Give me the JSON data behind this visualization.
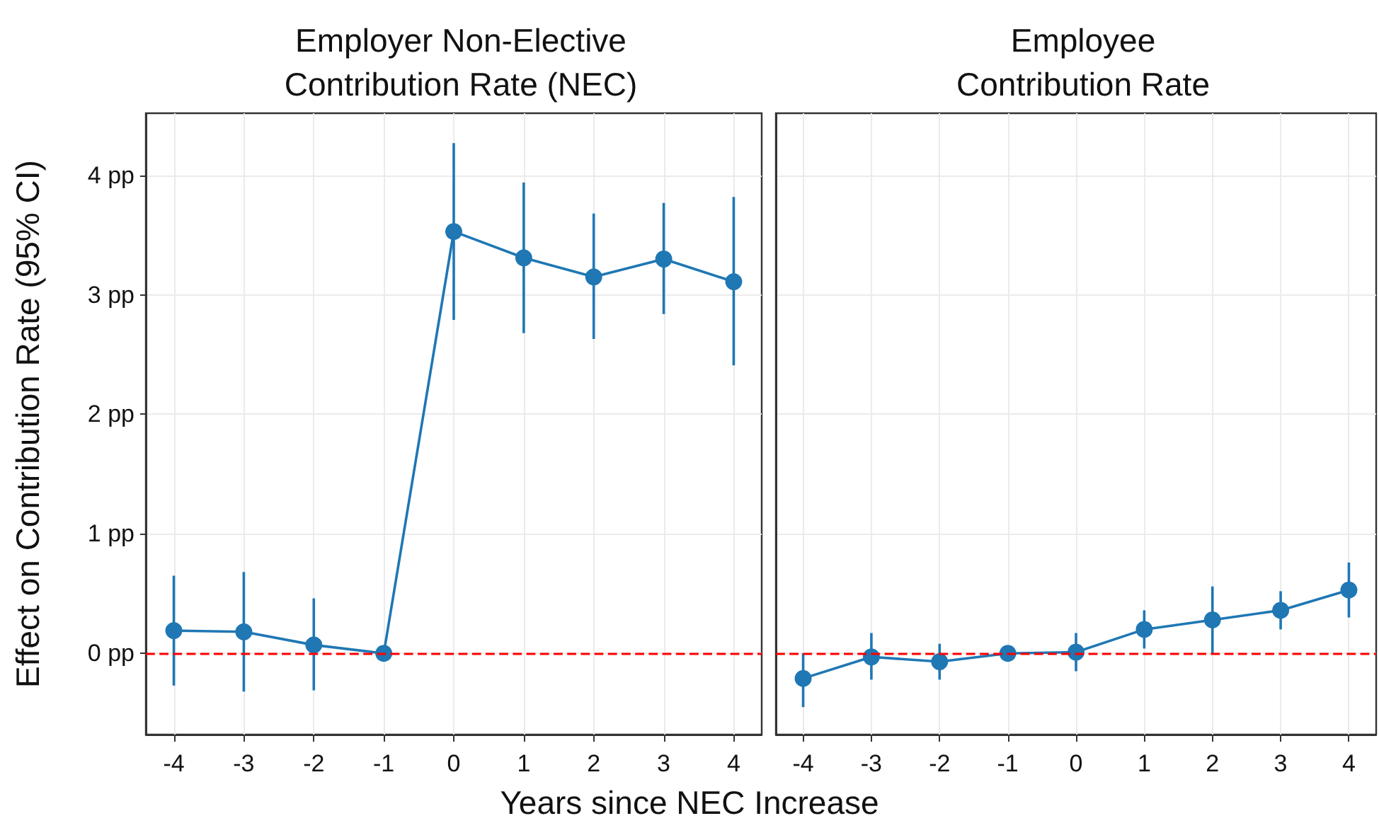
{
  "chart_data": [
    {
      "type": "line",
      "title": "Employer Non-Elective\nContribution Rate (NEC)",
      "xlabel": "Years since NEC Increase",
      "ylabel": "Effect on Contribution Rate (95% CI)",
      "x": [
        -4,
        -3,
        -2,
        -1,
        0,
        1,
        2,
        3,
        4
      ],
      "xlim": [
        -4.4,
        4.4
      ],
      "xticks": [
        -4,
        -3,
        -2,
        -1,
        0,
        1,
        2,
        3,
        4
      ],
      "ylim": [
        -0.68,
        4.52
      ],
      "yticks": [
        {
          "value": 0,
          "label": "0 pp"
        },
        {
          "value": 1,
          "label": "1 pp"
        },
        {
          "value": 2,
          "label": "2 pp"
        },
        {
          "value": 3,
          "label": "3 pp"
        },
        {
          "value": 4,
          "label": "4 pp"
        }
      ],
      "series": [
        {
          "color": "#1f77b4",
          "values": [
            0.19,
            0.18,
            0.07,
            0,
            3.53,
            3.31,
            3.15,
            3.3,
            3.11
          ],
          "errors": [
            [
              -0.27,
              0.65
            ],
            [
              -0.32,
              0.68
            ],
            [
              -0.31,
              0.46
            ],
            null,
            [
              2.79,
              4.27
            ],
            [
              2.68,
              3.94
            ],
            [
              2.63,
              3.68
            ],
            [
              2.84,
              3.77
            ],
            [
              2.41,
              3.82
            ]
          ]
        }
      ],
      "ref_lines": [
        {
          "axis": "y",
          "value": 0,
          "color": "#ff0000",
          "line_style": "dashed"
        }
      ],
      "grid": true,
      "marker": "circle",
      "line_style": "solid"
    },
    {
      "type": "line",
      "title": "Employee\nContribution Rate",
      "x": [
        -4,
        -3,
        -2,
        -1,
        0,
        1,
        2,
        3,
        4
      ],
      "xlim": [
        -4.4,
        4.4
      ],
      "xticks": [
        -4,
        -3,
        -2,
        -1,
        0,
        1,
        2,
        3,
        4
      ],
      "ylim": [
        -0.68,
        4.52
      ],
      "yticks": [
        0,
        1,
        2,
        3,
        4
      ],
      "tick_labels": "x",
      "series": [
        {
          "color": "#1f77b4",
          "values": [
            -0.21,
            -0.03,
            -0.07,
            0,
            0.01,
            0.2,
            0.28,
            0.36,
            0.53
          ],
          "errors": [
            [
              -0.45,
              0
            ],
            [
              -0.22,
              0.17
            ],
            [
              -0.22,
              0.08
            ],
            null,
            [
              -0.15,
              0.17
            ],
            [
              0.04,
              0.36
            ],
            [
              0,
              0.56
            ],
            [
              0.2,
              0.52
            ],
            [
              0.3,
              0.76
            ]
          ]
        }
      ],
      "ref_lines": [
        {
          "axis": "y",
          "value": 0,
          "color": "#ff0000",
          "line_style": "dashed"
        }
      ],
      "grid": true,
      "marker": "circle",
      "line_style": "solid"
    }
  ]
}
